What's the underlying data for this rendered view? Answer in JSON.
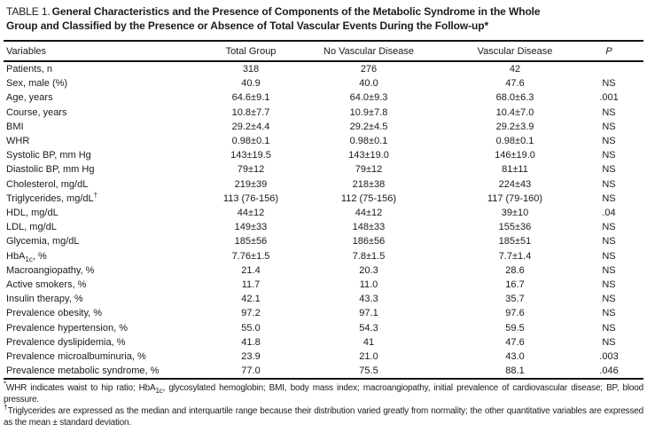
{
  "colors": {
    "text": "#1a1a1a",
    "rule": "#111111",
    "background": "#ffffff"
  },
  "title": {
    "prefix": "TABLE 1.",
    "line1": "General Characteristics and the Presence of Components of the Metabolic Syndrome in the Whole",
    "line2": "Group and Classified by the Presence or Absence of Total Vascular Events During the Follow-up*"
  },
  "table": {
    "columns": [
      "Variables",
      "Total Group",
      "No Vascular Disease",
      "Vascular Disease",
      "P"
    ],
    "rows": [
      {
        "label": "Patients, n",
        "total": "318",
        "no_vascular_disease": "276",
        "vascular_disease": "42",
        "p": ""
      },
      {
        "label": "Sex, male (%)",
        "total": "40.9",
        "no_vascular_disease": "40.0",
        "vascular_disease": "47.6",
        "p": "NS"
      },
      {
        "label": "Age, years",
        "total": "64.6±9.1",
        "no_vascular_disease": "64.0±9.3",
        "vascular_disease": "68.0±6.3",
        "p": ".001"
      },
      {
        "label": "Course, years",
        "total": "10.8±7.7",
        "no_vascular_disease": "10.9±7.8",
        "vascular_disease": "10.4±7.0",
        "p": "NS"
      },
      {
        "label": "BMI",
        "total": "29.2±4.4",
        "no_vascular_disease": "29.2±4.5",
        "vascular_disease": "29.2±3.9",
        "p": "NS"
      },
      {
        "label": "WHR",
        "total": "0.98±0.1",
        "no_vascular_disease": "0.98±0.1",
        "vascular_disease": "0.98±0.1",
        "p": "NS"
      },
      {
        "label": "Systolic BP, mm Hg",
        "total": "143±19.5",
        "no_vascular_disease": "143±19.0",
        "vascular_disease": "146±19.0",
        "p": "NS"
      },
      {
        "label": "Diastolic BP, mm Hg",
        "total": "79±12",
        "no_vascular_disease": "79±12",
        "vascular_disease": "81±11",
        "p": "NS"
      },
      {
        "label": "Cholesterol, mg/dL",
        "total": "219±39",
        "no_vascular_disease": "218±38",
        "vascular_disease": "224±43",
        "p": "NS"
      },
      {
        "label": "Triglycerides, mg/dL†",
        "label_segments": [
          {
            "t": "Triglycerides, mg/dL"
          },
          {
            "t": "†",
            "style": "sup"
          }
        ],
        "total": "113 (76-156)",
        "no_vascular_disease": "112 (75-156)",
        "vascular_disease": "117 (79-160)",
        "p": "NS"
      },
      {
        "label": "HDL, mg/dL",
        "total": "44±12",
        "no_vascular_disease": "44±12",
        "vascular_disease": "39±10",
        "p": ".04"
      },
      {
        "label": "LDL, mg/dL",
        "total": "149±33",
        "no_vascular_disease": "148±33",
        "vascular_disease": "155±36",
        "p": "NS"
      },
      {
        "label": "Glycemia, mg/dL",
        "total": "185±56",
        "no_vascular_disease": "186±56",
        "vascular_disease": "185±51",
        "p": "NS"
      },
      {
        "label": "HbA1c, %",
        "label_segments": [
          {
            "t": "HbA"
          },
          {
            "t": "1c",
            "style": "sub"
          },
          {
            "t": ", %"
          }
        ],
        "total": "7.76±1.5",
        "no_vascular_disease": "7.8±1.5",
        "vascular_disease": "7.7±1.4",
        "p": "NS"
      },
      {
        "label": "Macroangiopathy, %",
        "total": "21.4",
        "no_vascular_disease": "20.3",
        "vascular_disease": "28.6",
        "p": "NS"
      },
      {
        "label": "Active smokers, %",
        "total": "11.7",
        "no_vascular_disease": "11.0",
        "vascular_disease": "16.7",
        "p": "NS"
      },
      {
        "label": "Insulin therapy, %",
        "total": "42.1",
        "no_vascular_disease": "43.3",
        "vascular_disease": "35.7",
        "p": "NS"
      },
      {
        "label": "Prevalence obesity, %",
        "total": "97.2",
        "no_vascular_disease": "97.1",
        "vascular_disease": "97.6",
        "p": "NS"
      },
      {
        "label": "Prevalence hypertension, %",
        "total": "55.0",
        "no_vascular_disease": "54.3",
        "vascular_disease": "59.5",
        "p": "NS"
      },
      {
        "label": "Prevalence dyslipidemia, %",
        "total": "41.8",
        "no_vascular_disease": "41",
        "vascular_disease": "47.6",
        "p": "NS"
      },
      {
        "label": "Prevalence microalbuminuria, %",
        "total": "23.9",
        "no_vascular_disease": "21.0",
        "vascular_disease": "43.0",
        "p": ".003"
      },
      {
        "label": "Prevalence metabolic syndrome, %",
        "total": "77.0",
        "no_vascular_disease": "75.5",
        "vascular_disease": "88.1",
        "p": ".046"
      }
    ]
  },
  "footnotes": [
    {
      "segments": [
        {
          "t": "*",
          "style": "sup"
        },
        {
          "t": "WHR indicates waist to hip ratio; HbA"
        },
        {
          "t": "1c",
          "style": "sub"
        },
        {
          "t": ", glycosylated hemoglobin; BMI, body mass index; macroangiopathy, initial prevalence of cardiovascular disease; BP, blood pressure."
        }
      ]
    },
    {
      "segments": [
        {
          "t": "†",
          "style": "sup"
        },
        {
          "t": "Triglycerides are expressed as the median and interquartile range because their distribution varied greatly from normality; the other quantitative variables are expressed as the mean ± standard deviation."
        }
      ]
    }
  ]
}
